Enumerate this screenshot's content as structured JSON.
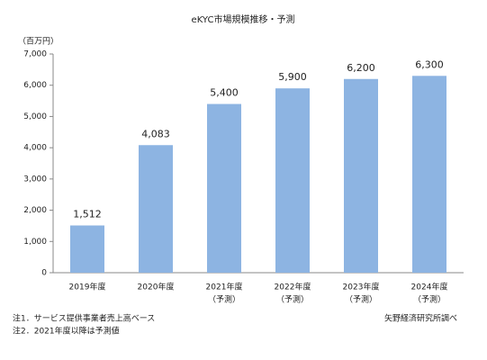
{
  "chart_data": {
    "type": "bar",
    "title": "eKYC市場規模推移・予測",
    "y_unit": "（百万円）",
    "categories": [
      [
        "2019年度"
      ],
      [
        "2020年度"
      ],
      [
        "2021年度",
        "（予測）"
      ],
      [
        "2022年度",
        "（予測）"
      ],
      [
        "2023年度",
        "（予測）"
      ],
      [
        "2024年度",
        "（予測）"
      ]
    ],
    "values": [
      1512,
      4083,
      5400,
      5900,
      6200,
      6300
    ],
    "value_labels": [
      "1,512",
      "4,083",
      "5,400",
      "5,900",
      "6,200",
      "6,300"
    ],
    "color": "#8db4e2",
    "ylim": [
      0,
      7000
    ],
    "yticks": [
      0,
      {
        "value": 1000,
        "label": "1,000"
      },
      {
        "value": 2000,
        "label": "2,000"
      },
      {
        "value": 3000,
        "label": "3,000"
      },
      {
        "value": 4000,
        "label": "4,000"
      },
      {
        "value": 5000,
        "label": "5,000"
      },
      {
        "value": 6000,
        "label": "6,000"
      },
      {
        "value": 7000,
        "label": "7,000"
      }
    ],
    "grid": false,
    "notes": [
      "注1．サービス提供事業者売上高ベース",
      "注2．2021年度以降は予測値"
    ],
    "source": "矢野経済研究所調べ"
  }
}
